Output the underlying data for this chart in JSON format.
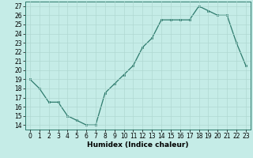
{
  "x": [
    0,
    1,
    2,
    3,
    4,
    5,
    6,
    7,
    8,
    9,
    10,
    11,
    12,
    13,
    14,
    15,
    16,
    17,
    18,
    19,
    20,
    21,
    22,
    23
  ],
  "y": [
    19,
    18,
    16.5,
    16.5,
    15,
    14.5,
    14,
    14,
    17.5,
    18.5,
    19.5,
    20.5,
    22.5,
    23.5,
    25.5,
    25.5,
    25.5,
    25.5,
    27,
    26.5,
    26,
    26,
    23,
    20.5
  ],
  "xlabel": "Humidex (Indice chaleur)",
  "ylim_min": 13.5,
  "ylim_max": 27.5,
  "xlim_min": -0.5,
  "xlim_max": 23.5,
  "line_color": "#2d7a6c",
  "bg_color": "#c5ece7",
  "grid_color": "#b0d8d2",
  "yticks": [
    14,
    15,
    16,
    17,
    18,
    19,
    20,
    21,
    22,
    23,
    24,
    25,
    26,
    27
  ],
  "xticks": [
    0,
    1,
    2,
    3,
    4,
    5,
    6,
    7,
    8,
    9,
    10,
    11,
    12,
    13,
    14,
    15,
    16,
    17,
    18,
    19,
    20,
    21,
    22,
    23
  ],
  "tick_fontsize": 5.5,
  "xlabel_fontsize": 6.5
}
